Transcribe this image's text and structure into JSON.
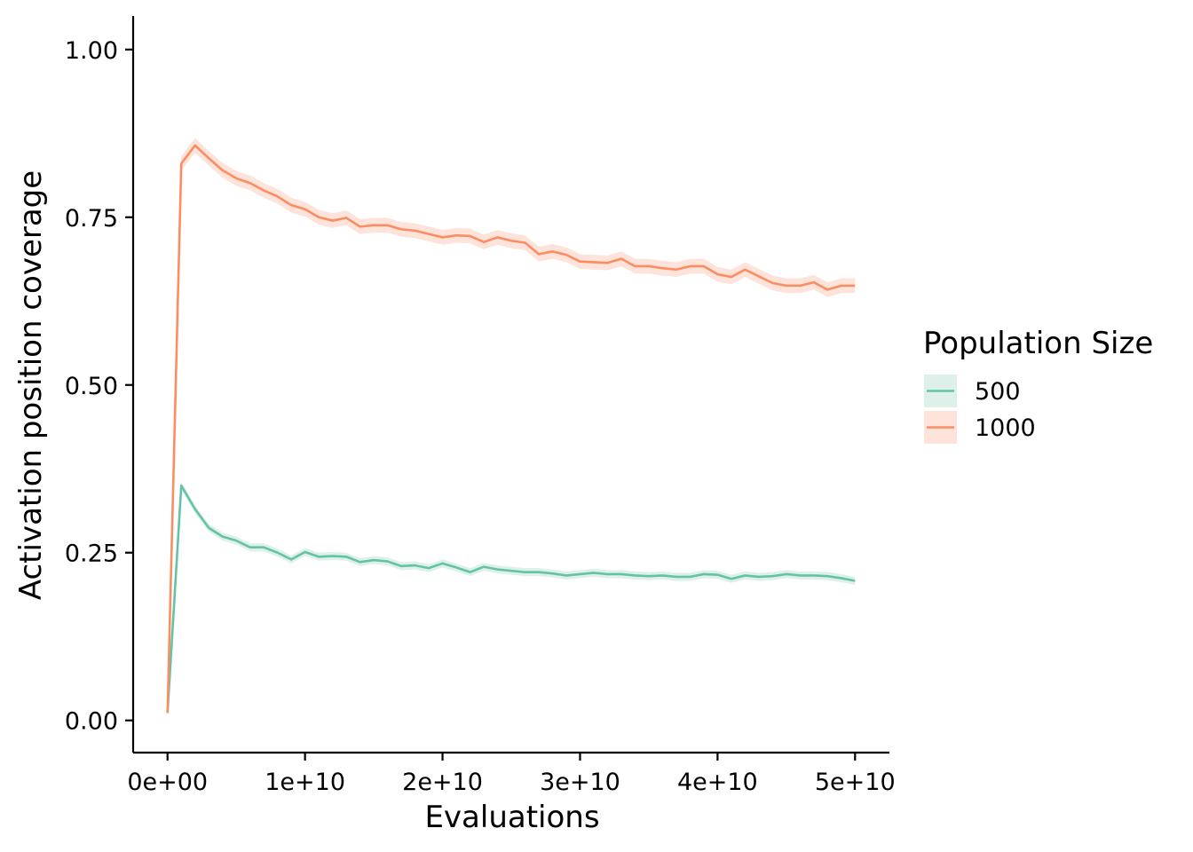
{
  "chart_data": {
    "type": "line",
    "title": "",
    "xlabel": "Evaluations",
    "ylabel": "Activation position coverage",
    "xlim": [
      -2500000000,
      52500000000
    ],
    "ylim": [
      -0.048,
      1.05
    ],
    "x_ticks": [
      0,
      10000000000,
      20000000000,
      30000000000,
      40000000000,
      50000000000
    ],
    "x_tick_labels": [
      "0e+00",
      "1e+10",
      "2e+10",
      "3e+10",
      "4e+10",
      "5e+10"
    ],
    "y_ticks": [
      0,
      0.25,
      0.5,
      0.75,
      1.0
    ],
    "y_tick_labels": [
      "0.00",
      "0.25",
      "0.50",
      "0.75",
      "1.00"
    ],
    "grid": false,
    "legend": {
      "title": "Population Size",
      "position": "right"
    },
    "x": [
      0,
      1000000000,
      2000000000,
      3000000000,
      4000000000,
      5000000000,
      6000000000,
      7000000000,
      8000000000,
      9000000000,
      10000000000,
      11000000000,
      12000000000,
      13000000000,
      14000000000,
      15000000000,
      16000000000,
      17000000000,
      18000000000,
      19000000000,
      20000000000,
      21000000000,
      22000000000,
      23000000000,
      24000000000,
      25000000000,
      26000000000,
      27000000000,
      28000000000,
      29000000000,
      30000000000,
      31000000000,
      32000000000,
      33000000000,
      34000000000,
      35000000000,
      36000000000,
      37000000000,
      38000000000,
      39000000000,
      40000000000,
      41000000000,
      42000000000,
      43000000000,
      44000000000,
      45000000000,
      46000000000,
      47000000000,
      48000000000,
      49000000000,
      50000000000
    ],
    "series": [
      {
        "name": "500",
        "color": "#66c2a5",
        "band_color": "#ddf1ea",
        "band_halfwidth": 0.006,
        "values": [
          0.011,
          0.35,
          0.315,
          0.287,
          0.274,
          0.268,
          0.258,
          0.258,
          0.25,
          0.24,
          0.251,
          0.244,
          0.245,
          0.244,
          0.236,
          0.239,
          0.237,
          0.23,
          0.231,
          0.227,
          0.234,
          0.228,
          0.221,
          0.229,
          0.225,
          0.223,
          0.221,
          0.221,
          0.219,
          0.216,
          0.218,
          0.22,
          0.218,
          0.218,
          0.216,
          0.215,
          0.216,
          0.214,
          0.214,
          0.218,
          0.217,
          0.211,
          0.216,
          0.214,
          0.215,
          0.218,
          0.216,
          0.216,
          0.215,
          0.212,
          0.208
        ]
      },
      {
        "name": "1000",
        "color": "#fc8d62",
        "band_color": "#fde3d9",
        "band_halfwidth": 0.011,
        "values": [
          0.011,
          0.83,
          0.857,
          0.838,
          0.82,
          0.808,
          0.801,
          0.79,
          0.781,
          0.768,
          0.762,
          0.75,
          0.745,
          0.749,
          0.736,
          0.738,
          0.738,
          0.732,
          0.73,
          0.725,
          0.72,
          0.723,
          0.722,
          0.713,
          0.72,
          0.715,
          0.712,
          0.695,
          0.699,
          0.694,
          0.684,
          0.683,
          0.682,
          0.688,
          0.677,
          0.677,
          0.674,
          0.672,
          0.677,
          0.677,
          0.665,
          0.661,
          0.672,
          0.662,
          0.652,
          0.648,
          0.648,
          0.653,
          0.642,
          0.648,
          0.648
        ]
      }
    ]
  }
}
